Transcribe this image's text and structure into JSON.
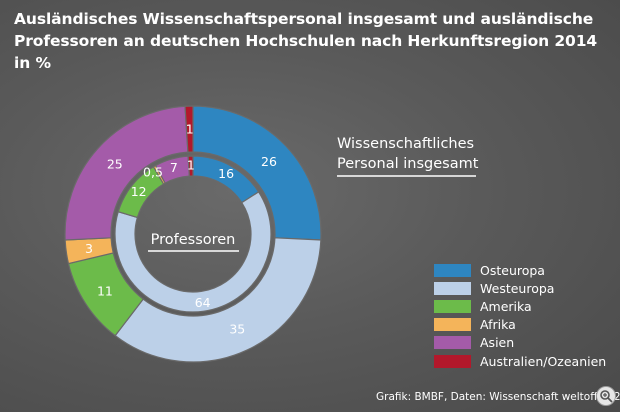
{
  "title": "Ausländisches Wissenschaftspersonal insgesamt und ausländische Professoren an deutschen Hochschulen nach Herkunftsregion 2014 in %",
  "chart_data": {
    "type": "pie",
    "subtype": "nested-donut",
    "categories": [
      "Osteuropa",
      "Westeuropa",
      "Amerika",
      "Afrika",
      "Asien",
      "Australien/Ozeanien"
    ],
    "series": [
      {
        "name": "Wissenschaftliches Personal insgesamt",
        "ring": "outer",
        "values": [
          26,
          35,
          11,
          3,
          25,
          1
        ],
        "labels": [
          "26",
          "35",
          "11",
          "3",
          "25",
          "1"
        ]
      },
      {
        "name": "Professoren",
        "ring": "inner",
        "values": [
          16,
          64,
          12,
          0.5,
          7,
          1
        ],
        "labels": [
          "16",
          "64",
          "12",
          "0,5",
          "7",
          "1"
        ]
      }
    ],
    "colors": [
      "#2e86c1",
      "#bcd0e8",
      "#6cbb4a",
      "#f4b45a",
      "#a45ba9",
      "#b2182b"
    ],
    "legend_position": "bottom-right"
  },
  "footer": "Grafik: BMBF, Daten: Wissenschaft weltoffen 2016",
  "icons": {
    "zoom": "zoom-icon"
  }
}
